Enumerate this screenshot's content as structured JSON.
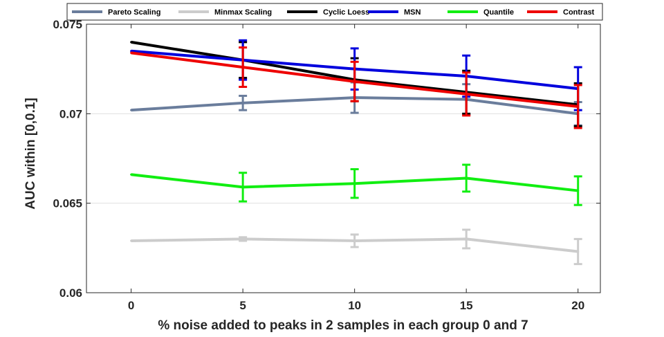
{
  "chart_data": {
    "type": "line",
    "xlabel": "% noise added to peaks in 2 samples in each group 0 and 7",
    "ylabel": "AUC within [0,0.1]",
    "x": [
      0,
      5,
      10,
      15,
      20
    ],
    "xlim": [
      -2,
      21
    ],
    "ylim": [
      0.06,
      0.075
    ],
    "xticks": [
      0,
      5,
      10,
      15,
      20
    ],
    "yticks": [
      0.06,
      0.065,
      0.07,
      0.075
    ],
    "xtick_labels": [
      "0",
      "5",
      "10",
      "15",
      "20"
    ],
    "ytick_labels": [
      "0.06",
      "0.065",
      "0.07",
      "0.075"
    ],
    "grid": "horizontal",
    "legend": "top",
    "series": [
      {
        "name": "Pareto Scaling",
        "color": "#6a7d9c",
        "values": [
          0.0702,
          0.0706,
          0.0709,
          0.0708,
          0.07
        ],
        "errors": [
          0,
          0.0004,
          0.00085,
          0.00085,
          0.00065
        ]
      },
      {
        "name": "Minmax Scaling",
        "color": "#cccccc",
        "values": [
          0.0629,
          0.063,
          0.0629,
          0.063,
          0.0623
        ],
        "errors": [
          0,
          0.0001,
          0.00035,
          0.00052,
          0.0007
        ]
      },
      {
        "name": "Cyclic Loess",
        "color": "#000000",
        "values": [
          0.074,
          0.073,
          0.0719,
          0.0712,
          0.0705
        ],
        "errors": [
          0,
          0.001,
          0.0012,
          0.0012,
          0.0012
        ]
      },
      {
        "name": "MSN",
        "color": "#0000dd",
        "values": [
          0.0735,
          0.073,
          0.0725,
          0.0721,
          0.0714
        ],
        "errors": [
          0,
          0.0011,
          0.00115,
          0.00115,
          0.0012
        ]
      },
      {
        "name": "Quantile",
        "color": "#11ee11",
        "values": [
          0.0666,
          0.0659,
          0.0661,
          0.0664,
          0.0657
        ],
        "errors": [
          0,
          0.0008,
          0.0008,
          0.00075,
          0.0008
        ]
      },
      {
        "name": "Contrast",
        "color": "#ee0000",
        "values": [
          0.0734,
          0.0726,
          0.0718,
          0.0711,
          0.0704
        ],
        "errors": [
          0,
          0.0011,
          0.0011,
          0.0012,
          0.0012
        ]
      }
    ]
  }
}
